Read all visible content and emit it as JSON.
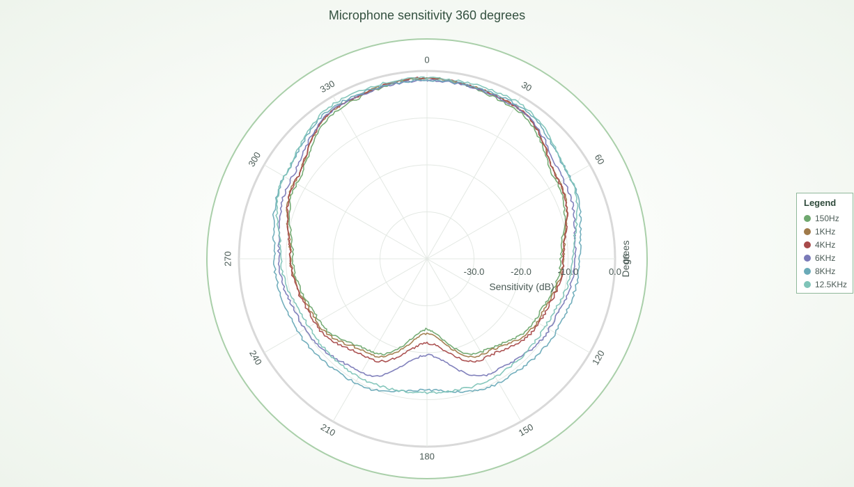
{
  "chart_data": {
    "type": "polar-line",
    "title": "Microphone sensitivity 360 degrees",
    "angular_axis_label": "Degrees",
    "radial_axis_label": "Sensitivity (dB)",
    "angle_ticks": [
      "0",
      "30",
      "60",
      "90",
      "120",
      "150",
      "180",
      "210",
      "240",
      "270",
      "300",
      "330"
    ],
    "radial_ticks": [
      "-30.0",
      "-20.0",
      "-10.0",
      "0.0"
    ],
    "radial_range": [
      -40,
      0
    ],
    "legend_title": "Legend",
    "legend_position": "right",
    "angles": [
      0,
      30,
      60,
      90,
      120,
      150,
      180,
      210,
      240,
      270,
      300,
      330
    ],
    "series": [
      {
        "name": "150Hz",
        "color": "#6fa86f",
        "values": [
          -1.5,
          -3.0,
          -8.0,
          -11.5,
          -13.5,
          -17.0,
          -25.0,
          -17.0,
          -13.5,
          -11.5,
          -8.0,
          -3.0
        ]
      },
      {
        "name": "1KHz",
        "color": "#a07a4a",
        "values": [
          -1.5,
          -2.5,
          -7.5,
          -11.0,
          -13.0,
          -16.5,
          -24.0,
          -16.5,
          -13.0,
          -11.0,
          -7.5,
          -2.5
        ]
      },
      {
        "name": "4KHz",
        "color": "#a84a4a",
        "values": [
          -1.5,
          -2.5,
          -7.5,
          -11.0,
          -12.5,
          -15.5,
          -22.0,
          -15.5,
          -12.5,
          -11.0,
          -7.5,
          -2.5
        ]
      },
      {
        "name": "6KHz",
        "color": "#7a7ab8",
        "values": [
          -2.0,
          -2.5,
          -6.5,
          -8.5,
          -10.0,
          -12.0,
          -19.5,
          -12.0,
          -10.0,
          -8.5,
          -6.5,
          -2.5
        ]
      },
      {
        "name": "8KHz",
        "color": "#6aaab8",
        "values": [
          -2.0,
          -2.0,
          -5.0,
          -7.5,
          -8.5,
          -9.5,
          -12.0,
          -9.5,
          -8.5,
          -7.5,
          -5.0,
          -2.0
        ]
      },
      {
        "name": "12.5KHz",
        "color": "#7fc4b8",
        "values": [
          -1.5,
          -1.5,
          -5.0,
          -9.0,
          -11.0,
          -11.0,
          -11.5,
          -11.0,
          -11.0,
          -9.0,
          -5.0,
          -1.5
        ]
      }
    ]
  }
}
